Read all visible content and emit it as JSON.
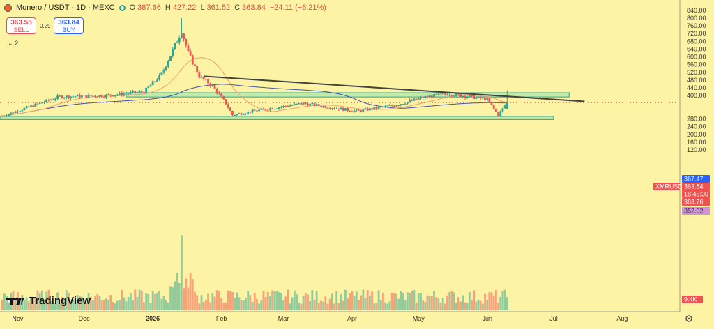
{
  "header": {
    "symbol": "Monero / USDT · 1D · MEXC",
    "open_label": "O",
    "open": "387.66",
    "high_label": "H",
    "high": "427.22",
    "low_label": "L",
    "low": "361.52",
    "close_label": "C",
    "close": "363.84",
    "change": "−24.11 (−6.21%)"
  },
  "trade": {
    "sell_price": "363.55",
    "sell_label": "SELL",
    "spread": "0.29",
    "buy_price": "363.84",
    "buy_label": "BUY"
  },
  "indicators": {
    "label": "2",
    "toggle_icon": "chevron-down-icon"
  },
  "price_scale": {
    "ticks": [
      "840.00",
      "800.00",
      "760.00",
      "720.00",
      "680.00",
      "640.00",
      "600.00",
      "560.00",
      "520.00",
      "480.00",
      "440.00",
      "400.00",
      "280.00",
      "240.00",
      "200.00",
      "160.00",
      "120.00"
    ],
    "tick_values": [
      840,
      800,
      760,
      720,
      680,
      640,
      600,
      560,
      520,
      480,
      440,
      400,
      280,
      240,
      200,
      160,
      120
    ],
    "markers": {
      "ma_value": "367.47",
      "symbol_tag": "XMRUSDT",
      "last_price": "363.84",
      "countdown": "18:45:30",
      "other_price": "363.76",
      "ma2_value": "352.02",
      "volume": "9.4K"
    }
  },
  "time_axis": [
    "Nov",
    "Dec",
    "2026",
    "Feb",
    "Mar",
    "Apr",
    "May",
    "Jun",
    "Jul",
    "Aug"
  ],
  "watermark": "TradingView",
  "settings_icon": "gear-icon",
  "colors": {
    "background": "#FDF3A5",
    "up": "#26A69A",
    "down": "#EF5350",
    "ma_fast": "#F0A070",
    "ma_slow": "#3F51B5",
    "trendline": "#424242",
    "zone": "#B9E7A6"
  },
  "chart_data": {
    "type": "candlestick",
    "title": "Monero / USDT · 1D · MEXC",
    "ylim": [
      80,
      840
    ],
    "y_scale": "linear",
    "x_range": [
      "Oct 24",
      "Aug 27"
    ],
    "grid": false,
    "series": [
      {
        "name": "XMRUSDT",
        "kind": "candles",
        "last": 363.84
      }
    ],
    "anchors": [
      {
        "date": "Oct 25",
        "price": 295
      },
      {
        "date": "Nov 20",
        "price": 395
      },
      {
        "date": "Dec 10",
        "price": 400
      },
      {
        "date": "Dec 28",
        "price": 420
      },
      {
        "date": "Jan 5",
        "price": 510
      },
      {
        "date": "Jan 14",
        "price": 735
      },
      {
        "date": "Jan 17",
        "price": 620
      },
      {
        "date": "Jan 22",
        "price": 500
      },
      {
        "date": "Jan 28",
        "price": 450
      },
      {
        "date": "Feb 3",
        "price": 360
      },
      {
        "date": "Feb 6",
        "price": 300
      },
      {
        "date": "Feb 15",
        "price": 320
      },
      {
        "date": "Mar 10",
        "price": 360
      },
      {
        "date": "Apr 3",
        "price": 320
      },
      {
        "date": "Apr 20",
        "price": 350
      },
      {
        "date": "May 5",
        "price": 395
      },
      {
        "date": "May 15",
        "price": 410
      },
      {
        "date": "Jun 1",
        "price": 380
      },
      {
        "date": "Jun 6",
        "price": 300
      },
      {
        "date": "Jun 10",
        "price": 365
      }
    ],
    "zones": [
      {
        "from": "Dec 20",
        "to": "Jul 8",
        "low": 393,
        "high": 415
      },
      {
        "from": "Oct 24",
        "to": "Jul 1",
        "low": 277,
        "high": 293
      }
    ],
    "trendline": {
      "from": {
        "date": "Jan 24",
        "price": 500
      },
      "to": {
        "date": "Jul 15",
        "price": 370
      }
    },
    "volume": {
      "max": 240,
      "spike_date": "Jan 14",
      "spike": 235
    }
  }
}
